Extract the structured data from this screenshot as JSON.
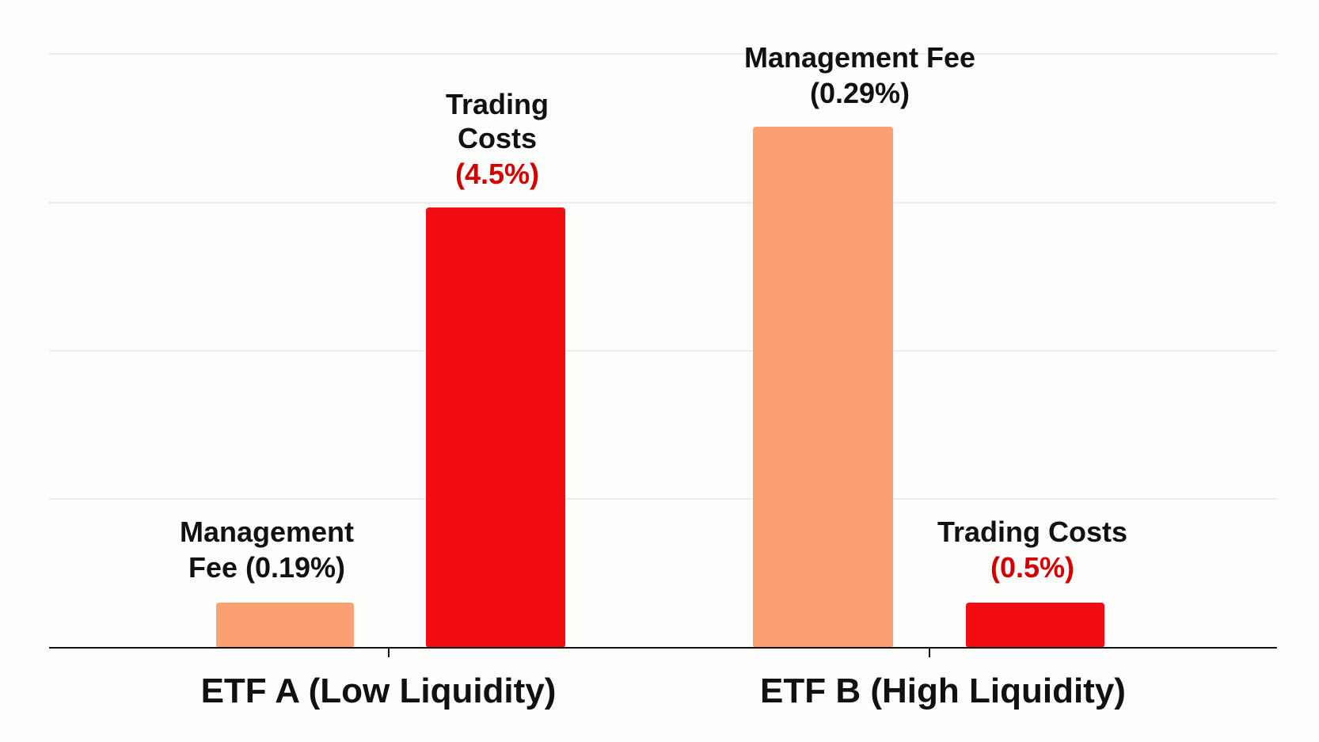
{
  "chart_data": {
    "type": "bar",
    "title": "",
    "xlabel": "",
    "ylabel": "",
    "categories": [
      "ETF A (Low Liquidity)",
      "ETF B (High Liquidity)"
    ],
    "grid": true,
    "legend": "none",
    "colors": {
      "management_fee": "#fba073",
      "trading_costs": "#f30d12",
      "highlight_text": "#d40000",
      "text": "#111111"
    },
    "bars": [
      {
        "category": 0,
        "kind": "management_fee",
        "value": 0.19,
        "label_lines": [
          "Management",
          "Fee (0.19%)"
        ],
        "highlight": ""
      },
      {
        "category": 0,
        "kind": "trading_costs",
        "value": 4.5,
        "label_lines": [
          "Trading",
          "Costs"
        ],
        "highlight": "(4.5%)"
      },
      {
        "category": 1,
        "kind": "management_fee",
        "value": 0.29,
        "label_lines": [
          "Management Fee",
          "(0.29%)"
        ],
        "highlight": ""
      },
      {
        "category": 1,
        "kind": "trading_costs",
        "value": 0.5,
        "label_lines": [
          "Trading Costs"
        ],
        "highlight": "(0.5%)"
      }
    ]
  }
}
